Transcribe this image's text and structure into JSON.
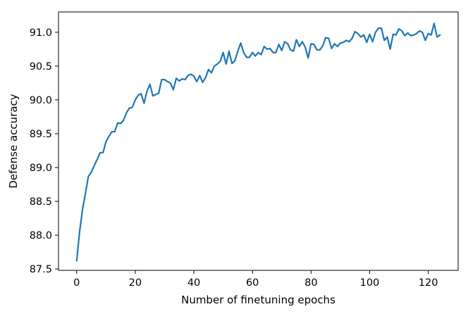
{
  "chart_data": {
    "type": "line",
    "title": "",
    "xlabel": "Number of finetuning epochs",
    "ylabel": "Defense accuracy",
    "xlim": [
      -6.2,
      130.2
    ],
    "ylim": [
      87.48,
      91.3
    ],
    "xticks": [
      0,
      20,
      40,
      60,
      80,
      100,
      120
    ],
    "yticks": [
      87.5,
      88.0,
      88.5,
      89.0,
      89.5,
      90.0,
      90.5,
      91.0
    ],
    "ytick_labels": [
      "87.5",
      "88.0",
      "88.5",
      "89.0",
      "89.5",
      "90.0",
      "90.5",
      "91.0"
    ],
    "grid": false,
    "legend": "none",
    "line_color": "#1f77b4",
    "series": [
      {
        "x": [
          0,
          1,
          2,
          3,
          4,
          5,
          6,
          7,
          8,
          9,
          10,
          11,
          12,
          13,
          14,
          15,
          16,
          17,
          18,
          19,
          20,
          21,
          22,
          23,
          24,
          25,
          26,
          27,
          28,
          29,
          30,
          31,
          32,
          33,
          34,
          35,
          36,
          37,
          38,
          39,
          40,
          41,
          42,
          43,
          44,
          45,
          46,
          47,
          48,
          49,
          50,
          51,
          52,
          53,
          54,
          55,
          56,
          57,
          58,
          59,
          60,
          61,
          62,
          63,
          64,
          65,
          66,
          67,
          68,
          69,
          70,
          71,
          72,
          73,
          74,
          75,
          76,
          77,
          78,
          79,
          80,
          81,
          82,
          83,
          84,
          85,
          86,
          87,
          88,
          89,
          90,
          91,
          92,
          93,
          94,
          95,
          96,
          97,
          98,
          99,
          100,
          101,
          102,
          103,
          104,
          105,
          106,
          107,
          108,
          109,
          110,
          111,
          112,
          113,
          114,
          115,
          116,
          117,
          118,
          119,
          120,
          121,
          122,
          123,
          124
        ],
        "y": [
          87.62,
          88.05,
          88.38,
          88.62,
          88.87,
          88.93,
          89.03,
          89.12,
          89.22,
          89.22,
          89.38,
          89.46,
          89.53,
          89.53,
          89.66,
          89.65,
          89.7,
          89.81,
          89.88,
          89.89,
          90.0,
          90.07,
          90.09,
          89.95,
          90.13,
          90.23,
          90.06,
          90.08,
          90.1,
          90.3,
          90.3,
          90.27,
          90.25,
          90.15,
          90.32,
          90.28,
          90.31,
          90.3,
          90.36,
          90.38,
          90.35,
          90.27,
          90.36,
          90.26,
          90.33,
          90.45,
          90.4,
          90.5,
          90.53,
          90.57,
          90.7,
          90.53,
          90.72,
          90.54,
          90.58,
          90.72,
          90.84,
          90.7,
          90.63,
          90.63,
          90.7,
          90.65,
          90.7,
          90.67,
          90.79,
          90.75,
          90.76,
          90.7,
          90.7,
          90.82,
          90.73,
          90.86,
          90.83,
          90.74,
          90.72,
          90.89,
          90.79,
          90.86,
          90.78,
          90.62,
          90.83,
          90.82,
          90.74,
          90.74,
          90.8,
          90.92,
          90.91,
          90.76,
          90.83,
          90.79,
          90.84,
          90.85,
          90.88,
          90.86,
          90.91,
          91.01,
          90.98,
          90.93,
          90.96,
          90.85,
          90.97,
          90.86,
          91.0,
          91.06,
          91.06,
          90.88,
          90.93,
          90.75,
          90.97,
          90.96,
          91.05,
          91.02,
          90.95,
          90.99,
          90.95,
          90.96,
          90.98,
          91.02,
          91.0,
          90.88,
          90.98,
          90.96,
          91.13,
          90.93,
          90.96
        ]
      }
    ]
  }
}
